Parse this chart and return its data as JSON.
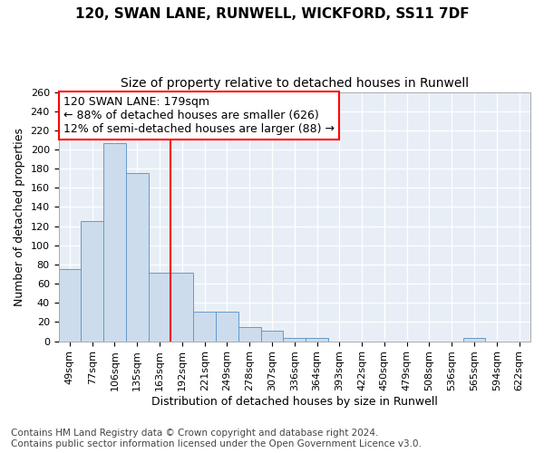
{
  "title": "120, SWAN LANE, RUNWELL, WICKFORD, SS11 7DF",
  "subtitle": "Size of property relative to detached houses in Runwell",
  "xlabel": "Distribution of detached houses by size in Runwell",
  "ylabel": "Number of detached properties",
  "categories": [
    "49sqm",
    "77sqm",
    "106sqm",
    "135sqm",
    "163sqm",
    "192sqm",
    "221sqm",
    "249sqm",
    "278sqm",
    "307sqm",
    "336sqm",
    "364sqm",
    "393sqm",
    "422sqm",
    "450sqm",
    "479sqm",
    "508sqm",
    "536sqm",
    "565sqm",
    "594sqm",
    "622sqm"
  ],
  "values": [
    75,
    125,
    207,
    175,
    71,
    71,
    31,
    31,
    15,
    11,
    3,
    3,
    0,
    0,
    0,
    0,
    0,
    0,
    3,
    0,
    0
  ],
  "bar_color": "#ccdcec",
  "bar_edge_color": "#6699cc",
  "annotation_line1": "120 SWAN LANE: 179sqm",
  "annotation_line2": "← 88% of detached houses are smaller (626)",
  "annotation_line3": "12% of semi-detached houses are larger (88) →",
  "vline_index": 5,
  "ylim_max": 260,
  "ytick_step": 20,
  "footnote1": "Contains HM Land Registry data © Crown copyright and database right 2024.",
  "footnote2": "Contains public sector information licensed under the Open Government Licence v3.0.",
  "bg_color": "#ffffff",
  "plot_bg_color": "#e8eef5",
  "title_fontsize": 11,
  "subtitle_fontsize": 10,
  "tick_fontsize": 8,
  "ylabel_fontsize": 9,
  "xlabel_fontsize": 9,
  "annotation_fontsize": 9,
  "footnote_fontsize": 7.5
}
